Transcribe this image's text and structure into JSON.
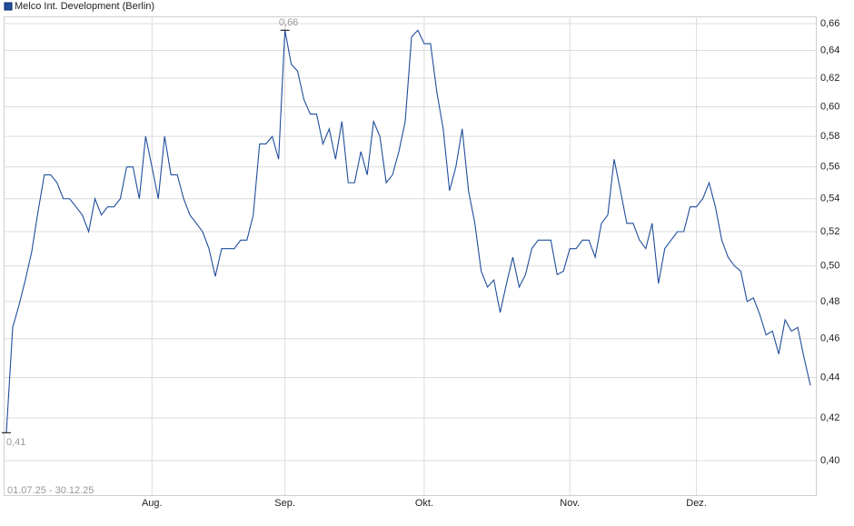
{
  "chart_data": {
    "type": "line",
    "log_scale": true,
    "grid": true,
    "legend": "top-left",
    "date_range": "01.07.25 - 30.12.25",
    "ylim": [
      0.3845,
      0.6655
    ],
    "yticks": [
      {
        "value": 0.4,
        "label": "0,40"
      },
      {
        "value": 0.42,
        "label": "0,42"
      },
      {
        "value": 0.44,
        "label": "0,44"
      },
      {
        "value": 0.46,
        "label": "0,46"
      },
      {
        "value": 0.48,
        "label": "0,48"
      },
      {
        "value": 0.5,
        "label": "0,50"
      },
      {
        "value": 0.52,
        "label": "0,52"
      },
      {
        "value": 0.54,
        "label": "0,54"
      },
      {
        "value": 0.56,
        "label": "0,56"
      },
      {
        "value": 0.58,
        "label": "0,58"
      },
      {
        "value": 0.6,
        "label": "0,60"
      },
      {
        "value": 0.62,
        "label": "0,62"
      },
      {
        "value": 0.64,
        "label": "0,64"
      },
      {
        "value": 0.66,
        "label": "0,66"
      }
    ],
    "categories": [
      null,
      null,
      null,
      null,
      null,
      null,
      null,
      null,
      null,
      null,
      null,
      null,
      null,
      null,
      null,
      null,
      null,
      null,
      null,
      null,
      null,
      null,
      null,
      "Aug.",
      null,
      null,
      null,
      null,
      null,
      null,
      null,
      null,
      null,
      null,
      null,
      null,
      null,
      null,
      null,
      null,
      null,
      null,
      null,
      null,
      "Sep.",
      null,
      null,
      null,
      null,
      null,
      null,
      null,
      null,
      null,
      null,
      null,
      null,
      null,
      null,
      null,
      null,
      null,
      null,
      null,
      null,
      null,
      "Okt.",
      null,
      null,
      null,
      null,
      null,
      null,
      null,
      null,
      null,
      null,
      null,
      null,
      null,
      null,
      null,
      null,
      null,
      null,
      null,
      null,
      null,
      null,
      "Nov.",
      null,
      null,
      null,
      null,
      null,
      null,
      null,
      null,
      null,
      null,
      null,
      null,
      null,
      null,
      null,
      null,
      null,
      null,
      null,
      "Dez.",
      null,
      null,
      null,
      null,
      null,
      null,
      null,
      null,
      null,
      null,
      null,
      null,
      null,
      null,
      null,
      null,
      null,
      null
    ],
    "series": [
      {
        "name": "Melco Int. Development (Berlin)",
        "color": "#1f4e9c",
        "values": [
          0.413,
          0.466,
          0.478,
          0.492,
          0.508,
          0.532,
          0.555,
          0.555,
          0.55,
          0.54,
          0.54,
          0.535,
          0.53,
          0.52,
          0.54,
          0.53,
          0.535,
          0.535,
          0.54,
          0.56,
          0.56,
          0.54,
          0.58,
          0.56,
          0.54,
          0.58,
          0.555,
          0.555,
          0.54,
          0.53,
          0.525,
          0.52,
          0.51,
          0.494,
          0.51,
          0.51,
          0.51,
          0.515,
          0.515,
          0.53,
          0.575,
          0.575,
          0.58,
          0.565,
          0.655,
          0.63,
          0.625,
          0.605,
          0.595,
          0.595,
          0.575,
          0.585,
          0.565,
          0.59,
          0.55,
          0.55,
          0.57,
          0.555,
          0.59,
          0.58,
          0.55,
          0.555,
          0.57,
          0.59,
          0.65,
          0.655,
          0.645,
          0.645,
          0.61,
          0.585,
          0.545,
          0.56,
          0.585,
          0.545,
          0.525,
          0.497,
          0.488,
          0.492,
          0.474,
          0.49,
          0.505,
          0.488,
          0.495,
          0.51,
          0.515,
          0.515,
          0.515,
          0.495,
          0.497,
          0.51,
          0.51,
          0.515,
          0.515,
          0.505,
          0.525,
          0.53,
          0.565,
          0.545,
          0.525,
          0.525,
          0.515,
          0.51,
          0.525,
          0.49,
          0.51,
          0.515,
          0.52,
          0.52,
          0.535,
          0.535,
          0.54,
          0.55,
          0.535,
          0.515,
          0.505,
          0.5,
          0.497,
          0.48,
          0.482,
          0.473,
          0.462,
          0.464,
          0.452,
          0.47,
          0.464,
          0.466,
          0.45,
          0.436
        ],
        "value_labels": [
          "0,41",
          null,
          null,
          null,
          null,
          null,
          null,
          null,
          null,
          null,
          null,
          null,
          null,
          null,
          null,
          null,
          null,
          null,
          null,
          null,
          null,
          null,
          null,
          null,
          null,
          null,
          null,
          null,
          null,
          null,
          null,
          null,
          null,
          null,
          null,
          null,
          null,
          null,
          null,
          null,
          null,
          null,
          null,
          null,
          "0,66",
          null,
          null,
          null,
          null,
          null,
          null,
          null,
          null,
          null,
          null,
          null,
          null,
          null,
          null,
          null,
          null,
          null,
          null,
          null,
          null,
          null,
          null,
          null,
          null,
          null,
          null,
          null,
          null,
          null,
          null,
          null,
          null,
          null,
          null,
          null,
          null,
          null,
          null,
          null,
          null,
          null,
          null,
          null,
          null,
          null,
          null,
          null,
          null,
          null,
          null,
          null,
          null,
          null,
          null,
          null,
          null,
          null,
          null,
          null,
          null,
          null,
          null,
          null,
          null,
          null,
          null,
          null,
          null,
          null,
          null,
          null,
          null,
          null,
          null,
          null,
          null,
          null,
          null,
          null,
          null,
          null,
          null,
          null
        ]
      }
    ]
  }
}
